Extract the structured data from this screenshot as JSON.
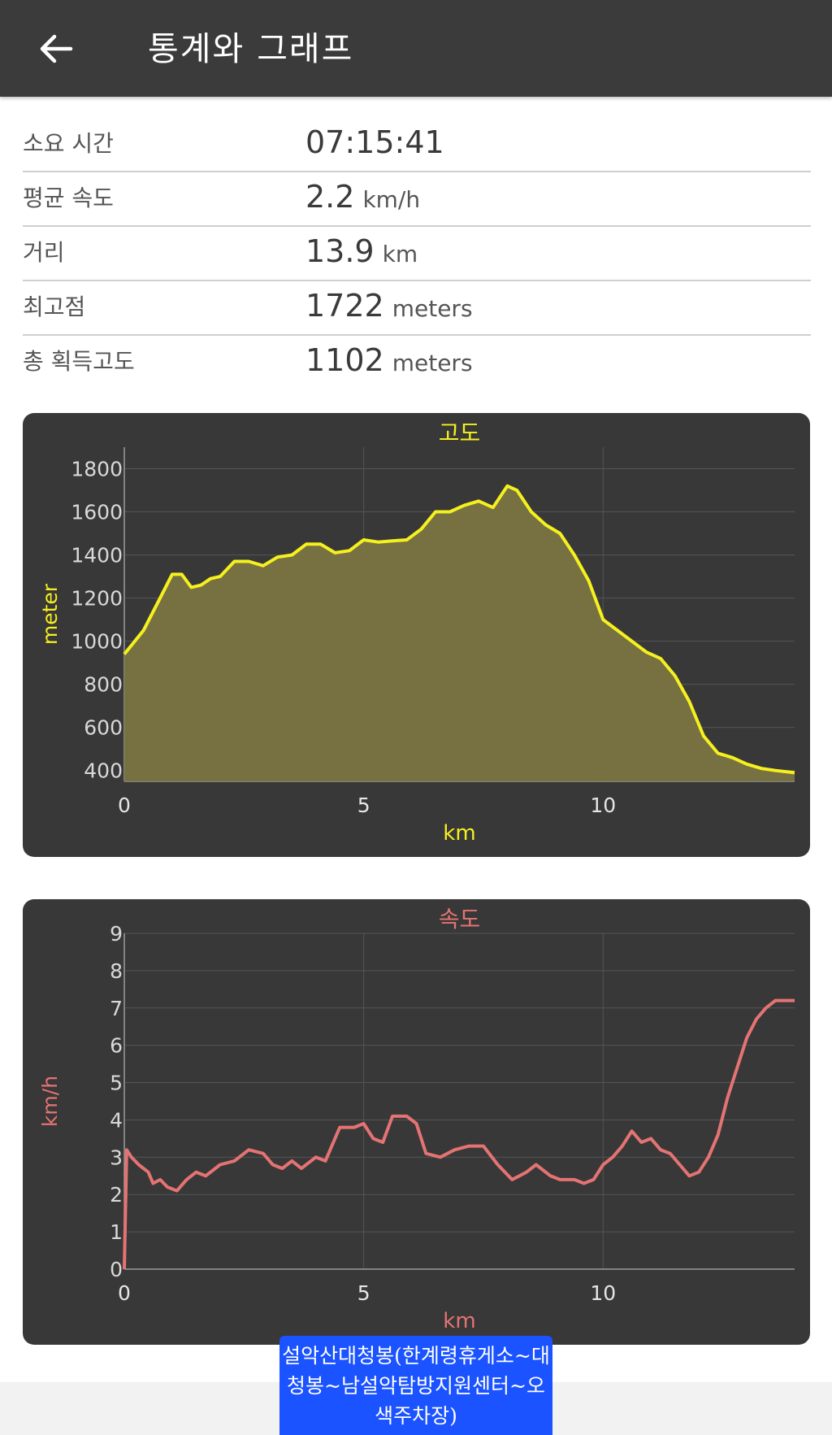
{
  "header": {
    "title": "통계와 그래프",
    "back_icon": "arrow-left-icon"
  },
  "stats": [
    {
      "label": "소요 시간",
      "value": "07:15:41",
      "unit": ""
    },
    {
      "label": "평균 속도",
      "value": "2.2",
      "unit": "km/h"
    },
    {
      "label": "거리",
      "value": "13.9",
      "unit": "km"
    },
    {
      "label": "최고점",
      "value": "1722",
      "unit": "meters"
    },
    {
      "label": "총 획득고도",
      "value": "1102",
      "unit": "meters"
    }
  ],
  "route_label": "설악산대청봉(한계령휴게소~대청봉~남설악탐방지원센터~오색주차장)",
  "colors": {
    "elevation": "#f5f01e",
    "elevation_fill": "#7a7442",
    "speed": "#e57373",
    "card_bg": "#383838"
  },
  "chart_data": [
    {
      "type": "area",
      "title": "고도",
      "xlabel": "km",
      "ylabel": "meter",
      "xlim": [
        0,
        14
      ],
      "ylim": [
        350,
        1900
      ],
      "xticks": [
        0,
        5,
        10
      ],
      "yticks": [
        400,
        600,
        800,
        1000,
        1200,
        1400,
        1600,
        1800
      ],
      "grid": true,
      "series": [
        {
          "x": [
            0,
            0.4,
            0.7,
            1.0,
            1.2,
            1.4,
            1.6,
            1.8,
            2.0,
            2.3,
            2.6,
            2.9,
            3.2,
            3.5,
            3.8,
            4.1,
            4.4,
            4.7,
            5.0,
            5.3,
            5.6,
            5.9,
            6.2,
            6.5,
            6.8,
            7.1,
            7.4,
            7.7,
            8.0,
            8.2,
            8.5,
            8.8,
            9.1,
            9.4,
            9.7,
            10.0,
            10.3,
            10.6,
            10.9,
            11.2,
            11.5,
            11.8,
            12.1,
            12.4,
            12.7,
            13.0,
            13.3,
            13.6,
            14.0
          ],
          "y": [
            940,
            1050,
            1180,
            1310,
            1310,
            1250,
            1260,
            1290,
            1300,
            1370,
            1370,
            1350,
            1390,
            1400,
            1450,
            1450,
            1410,
            1420,
            1470,
            1460,
            1465,
            1470,
            1520,
            1600,
            1600,
            1630,
            1650,
            1620,
            1720,
            1700,
            1600,
            1540,
            1500,
            1400,
            1280,
            1100,
            1050,
            1000,
            950,
            920,
            840,
            720,
            560,
            480,
            460,
            430,
            410,
            400,
            390
          ]
        }
      ]
    },
    {
      "type": "line",
      "title": "속도",
      "xlabel": "km",
      "ylabel": "km/h",
      "xlim": [
        0,
        14
      ],
      "ylim": [
        0,
        9
      ],
      "xticks": [
        0,
        5,
        10
      ],
      "yticks": [
        0,
        1,
        2,
        3,
        4,
        5,
        6,
        7,
        8,
        9
      ],
      "grid": true,
      "series": [
        {
          "x": [
            0,
            0.05,
            0.15,
            0.3,
            0.5,
            0.6,
            0.75,
            0.9,
            1.1,
            1.3,
            1.5,
            1.7,
            2.0,
            2.3,
            2.6,
            2.9,
            3.1,
            3.3,
            3.5,
            3.7,
            4.0,
            4.2,
            4.5,
            4.8,
            5.0,
            5.2,
            5.4,
            5.6,
            5.9,
            6.1,
            6.3,
            6.6,
            6.9,
            7.2,
            7.5,
            7.8,
            8.1,
            8.4,
            8.6,
            8.9,
            9.1,
            9.4,
            9.6,
            9.8,
            10.0,
            10.2,
            10.4,
            10.6,
            10.8,
            11.0,
            11.2,
            11.4,
            11.6,
            11.8,
            12.0,
            12.2,
            12.4,
            12.6,
            12.8,
            13.0,
            13.2,
            13.4,
            13.6,
            13.8,
            14.0
          ],
          "y": [
            0,
            3.2,
            3.0,
            2.8,
            2.6,
            2.3,
            2.4,
            2.2,
            2.1,
            2.4,
            2.6,
            2.5,
            2.8,
            2.9,
            3.2,
            3.1,
            2.8,
            2.7,
            2.9,
            2.7,
            3.0,
            2.9,
            3.8,
            3.8,
            3.9,
            3.5,
            3.4,
            4.1,
            4.1,
            3.9,
            3.1,
            3.0,
            3.2,
            3.3,
            3.3,
            2.8,
            2.4,
            2.6,
            2.8,
            2.5,
            2.4,
            2.4,
            2.3,
            2.4,
            2.8,
            3.0,
            3.3,
            3.7,
            3.4,
            3.5,
            3.2,
            3.1,
            2.8,
            2.5,
            2.6,
            3.0,
            3.6,
            4.6,
            5.4,
            6.2,
            6.7,
            7.0,
            7.2,
            7.2,
            7.2
          ]
        }
      ]
    }
  ]
}
